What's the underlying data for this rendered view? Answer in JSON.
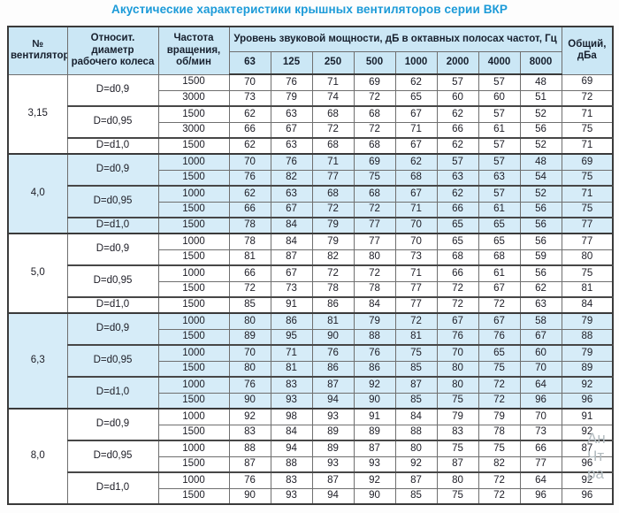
{
  "title": "Акустические характеристики крышных вентиляторов серии ВКР",
  "table": {
    "headers": {
      "fan_number": "№ вентилятора",
      "diameter": "Относит. диаметр рабочего колеса",
      "rotation": "Частота вращения, об/мин",
      "sound_power": "Уровень звуковой мощности, дБ в октавных полосах частот, Гц",
      "octave_bands": [
        "63",
        "125",
        "250",
        "500",
        "1000",
        "2000",
        "4000",
        "8000"
      ],
      "total": "Общий, дБа"
    },
    "groups": [
      {
        "fan": "3,15",
        "shaded": false,
        "subgroups": [
          {
            "diameter": "D=d0,9",
            "rows": [
              {
                "rpm": "1500",
                "levels": [
                  70,
                  76,
                  71,
                  69,
                  62,
                  57,
                  57,
                  48
                ],
                "total": 69
              },
              {
                "rpm": "3000",
                "levels": [
                  73,
                  79,
                  74,
                  72,
                  65,
                  60,
                  60,
                  51
                ],
                "total": 72
              }
            ]
          },
          {
            "diameter": "D=d0,95",
            "rows": [
              {
                "rpm": "1500",
                "levels": [
                  62,
                  63,
                  68,
                  68,
                  67,
                  62,
                  57,
                  52
                ],
                "total": 71
              },
              {
                "rpm": "3000",
                "levels": [
                  66,
                  67,
                  72,
                  72,
                  71,
                  66,
                  61,
                  56
                ],
                "total": 75
              }
            ]
          },
          {
            "diameter": "D=d1,0",
            "rows": [
              {
                "rpm": "1500",
                "levels": [
                  62,
                  63,
                  68,
                  68,
                  67,
                  62,
                  57,
                  52
                ],
                "total": 71
              }
            ]
          }
        ]
      },
      {
        "fan": "4,0",
        "shaded": true,
        "subgroups": [
          {
            "diameter": "D=d0,9",
            "rows": [
              {
                "rpm": "1000",
                "levels": [
                  70,
                  76,
                  71,
                  69,
                  62,
                  57,
                  57,
                  48
                ],
                "total": 69
              },
              {
                "rpm": "1500",
                "levels": [
                  76,
                  82,
                  77,
                  75,
                  68,
                  63,
                  63,
                  54
                ],
                "total": 75
              }
            ]
          },
          {
            "diameter": "D=d0,95",
            "rows": [
              {
                "rpm": "1000",
                "levels": [
                  62,
                  63,
                  68,
                  68,
                  67,
                  62,
                  57,
                  52
                ],
                "total": 71
              },
              {
                "rpm": "1500",
                "levels": [
                  66,
                  67,
                  72,
                  72,
                  71,
                  66,
                  61,
                  56
                ],
                "total": 75
              }
            ]
          },
          {
            "diameter": "D=d1,0",
            "rows": [
              {
                "rpm": "1500",
                "levels": [
                  78,
                  84,
                  79,
                  77,
                  70,
                  65,
                  65,
                  56
                ],
                "total": 77
              }
            ]
          }
        ]
      },
      {
        "fan": "5,0",
        "shaded": false,
        "subgroups": [
          {
            "diameter": "D=d0,9",
            "rows": [
              {
                "rpm": "1000",
                "levels": [
                  78,
                  84,
                  79,
                  77,
                  70,
                  65,
                  65,
                  56
                ],
                "total": 77
              },
              {
                "rpm": "1500",
                "levels": [
                  81,
                  87,
                  82,
                  80,
                  73,
                  68,
                  68,
                  59
                ],
                "total": 80
              }
            ]
          },
          {
            "diameter": "D=d0,95",
            "rows": [
              {
                "rpm": "1000",
                "levels": [
                  66,
                  67,
                  72,
                  72,
                  71,
                  66,
                  61,
                  56
                ],
                "total": 75
              },
              {
                "rpm": "1500",
                "levels": [
                  72,
                  73,
                  78,
                  78,
                  77,
                  72,
                  67,
                  62
                ],
                "total": 81
              }
            ]
          },
          {
            "diameter": "D=d1,0",
            "rows": [
              {
                "rpm": "1500",
                "levels": [
                  85,
                  91,
                  86,
                  84,
                  77,
                  72,
                  72,
                  63
                ],
                "total": 84
              }
            ]
          }
        ]
      },
      {
        "fan": "6,3",
        "shaded": true,
        "subgroups": [
          {
            "diameter": "D=d0,9",
            "rows": [
              {
                "rpm": "1000",
                "levels": [
                  80,
                  86,
                  81,
                  79,
                  72,
                  67,
                  67,
                  58
                ],
                "total": 79
              },
              {
                "rpm": "1500",
                "levels": [
                  89,
                  95,
                  90,
                  88,
                  81,
                  76,
                  76,
                  67
                ],
                "total": 88
              }
            ]
          },
          {
            "diameter": "D=d0,95",
            "rows": [
              {
                "rpm": "1000",
                "levels": [
                  70,
                  71,
                  76,
                  76,
                  75,
                  70,
                  65,
                  60
                ],
                "total": 79
              },
              {
                "rpm": "1500",
                "levels": [
                  80,
                  81,
                  86,
                  86,
                  85,
                  80,
                  75,
                  70
                ],
                "total": 89
              }
            ]
          },
          {
            "diameter": "D=d1,0",
            "rows": [
              {
                "rpm": "1000",
                "levels": [
                  76,
                  83,
                  87,
                  92,
                  87,
                  80,
                  72,
                  64
                ],
                "total": 92
              },
              {
                "rpm": "1500",
                "levels": [
                  90,
                  93,
                  94,
                  90,
                  85,
                  75,
                  72,
                  96
                ],
                "total": 96
              }
            ]
          }
        ]
      },
      {
        "fan": "8,0",
        "shaded": false,
        "subgroups": [
          {
            "diameter": "D=d0,9",
            "rows": [
              {
                "rpm": "1000",
                "levels": [
                  92,
                  98,
                  93,
                  91,
                  84,
                  79,
                  79,
                  70
                ],
                "total": 91
              },
              {
                "rpm": "1500",
                "levels": [
                  83,
                  84,
                  89,
                  89,
                  88,
                  83,
                  78,
                  73
                ],
                "total": 92
              }
            ]
          },
          {
            "diameter": "D=d0,95",
            "rows": [
              {
                "rpm": "1000",
                "levels": [
                  88,
                  94,
                  89,
                  87,
                  80,
                  75,
                  75,
                  66
                ],
                "total": 87
              },
              {
                "rpm": "1500",
                "levels": [
                  87,
                  88,
                  93,
                  93,
                  92,
                  87,
                  82,
                  77
                ],
                "total": 96
              }
            ]
          },
          {
            "diameter": "D=d1,0",
            "rows": [
              {
                "rpm": "1000",
                "levels": [
                  76,
                  83,
                  87,
                  92,
                  87,
                  80,
                  72,
                  64
                ],
                "total": 92
              },
              {
                "rpm": "1500",
                "levels": [
                  90,
                  93,
                  94,
                  90,
                  85,
                  75,
                  72,
                  96
                ],
                "total": 96
              }
            ]
          }
        ]
      }
    ]
  },
  "watermark_lines": [
    "Ан",
    "Чт",
    "ра"
  ],
  "colors": {
    "title_blue": "#1b9ad8",
    "header_bg": "#cbe7f5",
    "shaded_row_bg": "#d6ecf8",
    "border_dark": "#3a3a3a",
    "border_light": "#6f6f6f"
  }
}
